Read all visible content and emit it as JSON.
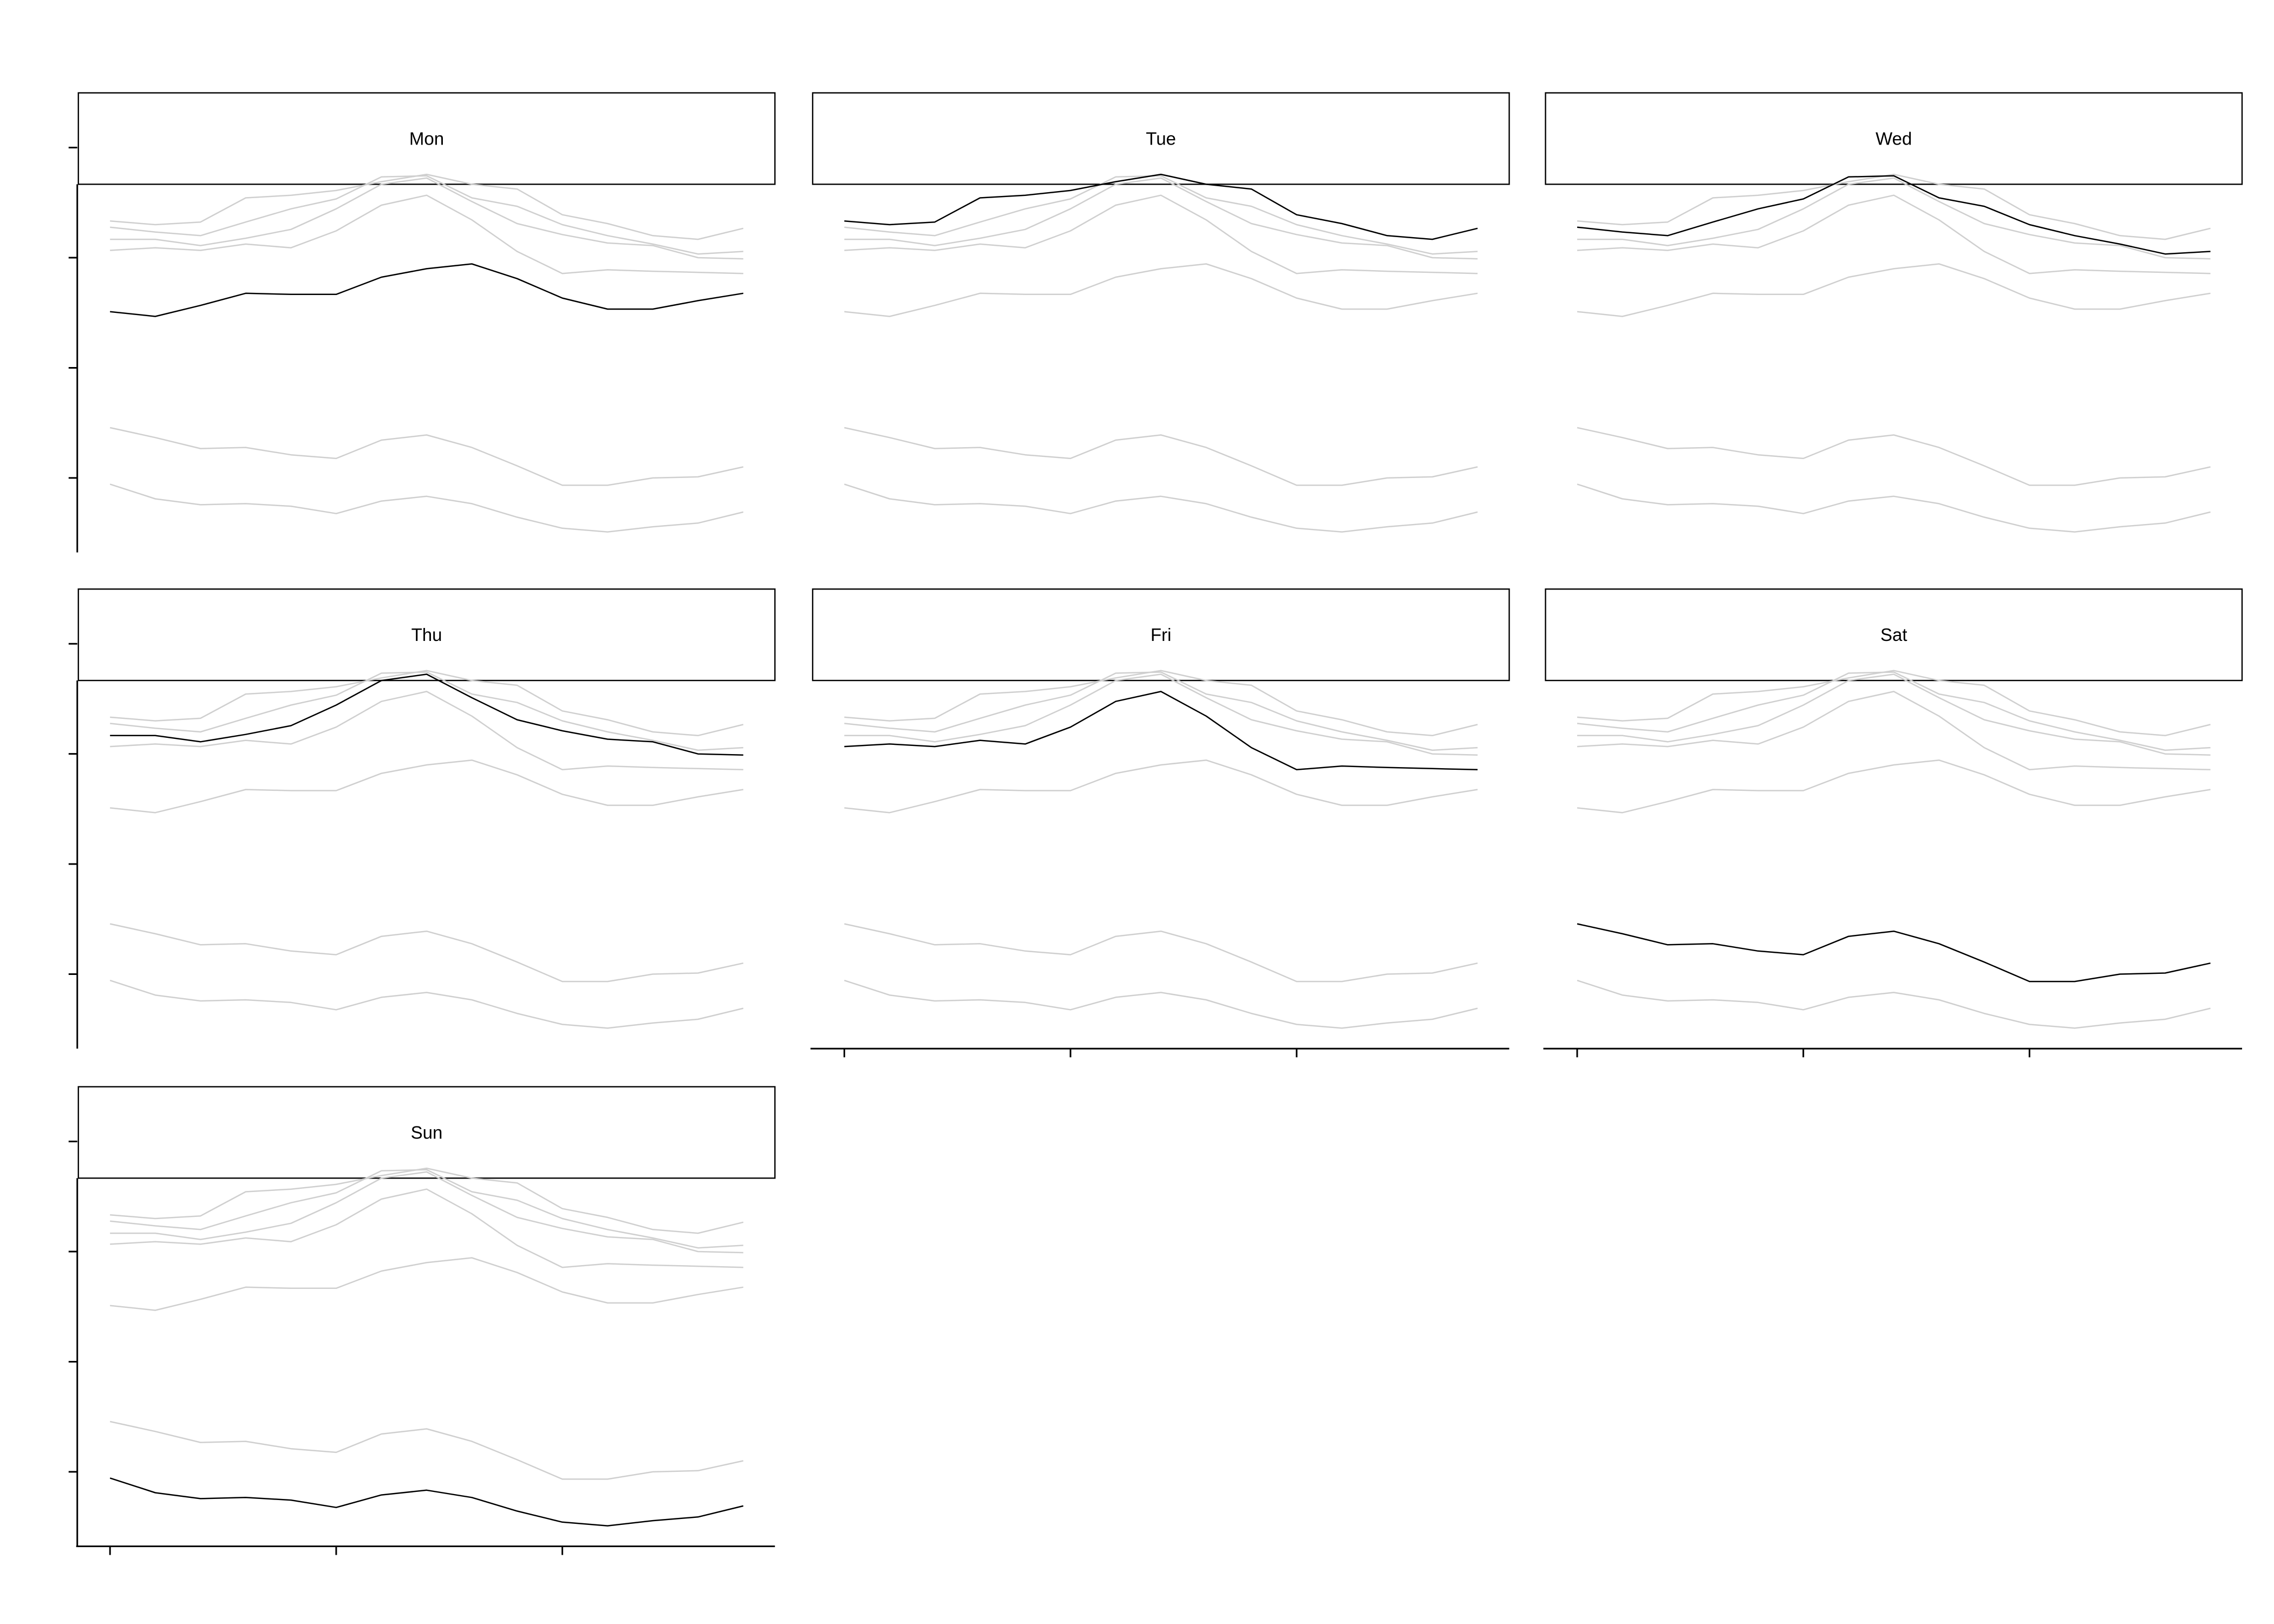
{
  "chart_data": {
    "type": "line",
    "facet_layout": {
      "columns": 3,
      "rows": 3
    },
    "highlight_color": "#000000",
    "context_color": "#cfcfcf",
    "x": [
      1,
      2,
      3,
      4,
      5,
      6,
      7,
      8,
      9,
      10,
      11,
      12,
      13,
      14,
      15
    ],
    "xlim": [
      0.3,
      15.7
    ],
    "x_ticks": [
      1,
      6,
      11
    ],
    "ylim": [
      0.0,
      1.0
    ],
    "y_ticks": [
      0.2,
      0.5,
      0.8,
      1.1
    ],
    "series": [
      {
        "values": [
          0.653,
          0.64,
          0.67,
          0.703,
          0.7,
          0.7,
          0.747,
          0.77,
          0.783,
          0.743,
          0.69,
          0.66,
          0.66,
          0.683,
          0.703
        ]
      },
      {
        "values": [
          0.9,
          0.89,
          0.897,
          0.963,
          0.97,
          0.983,
          1.007,
          1.027,
          1.0,
          0.987,
          0.917,
          0.893,
          0.86,
          0.85,
          0.88
        ]
      },
      {
        "values": [
          0.883,
          0.87,
          0.86,
          0.897,
          0.933,
          0.96,
          1.02,
          1.023,
          0.963,
          0.94,
          0.89,
          0.86,
          0.837,
          0.81,
          0.817
        ]
      },
      {
        "values": [
          0.85,
          0.85,
          0.833,
          0.853,
          0.877,
          0.933,
          1.0,
          1.017,
          0.953,
          0.893,
          0.863,
          0.84,
          0.833,
          0.8,
          0.797
        ]
      },
      {
        "values": [
          0.82,
          0.827,
          0.82,
          0.837,
          0.827,
          0.873,
          0.943,
          0.97,
          0.903,
          0.817,
          0.757,
          0.767,
          0.763,
          0.76,
          0.757
        ]
      },
      {
        "values": [
          0.337,
          0.31,
          0.28,
          0.283,
          0.263,
          0.253,
          0.303,
          0.317,
          0.283,
          0.233,
          0.18,
          0.18,
          0.2,
          0.203,
          0.23
        ]
      },
      {
        "values": [
          0.183,
          0.143,
          0.127,
          0.13,
          0.123,
          0.103,
          0.137,
          0.15,
          0.13,
          0.093,
          0.063,
          0.053,
          0.067,
          0.077,
          0.107
        ]
      }
    ],
    "panels": [
      {
        "label": "Mon",
        "highlight": 0,
        "show_y_axis": true,
        "show_x_axis": false
      },
      {
        "label": "Tue",
        "highlight": 1,
        "show_y_axis": false,
        "show_x_axis": false
      },
      {
        "label": "Wed",
        "highlight": 2,
        "show_y_axis": false,
        "show_x_axis": false
      },
      {
        "label": "Thu",
        "highlight": 3,
        "show_y_axis": true,
        "show_x_axis": false
      },
      {
        "label": "Fri",
        "highlight": 4,
        "show_y_axis": false,
        "show_x_axis": true
      },
      {
        "label": "Sat",
        "highlight": 5,
        "show_y_axis": false,
        "show_x_axis": true
      },
      {
        "label": "Sun",
        "highlight": 6,
        "show_y_axis": true,
        "show_x_axis": true
      }
    ]
  }
}
